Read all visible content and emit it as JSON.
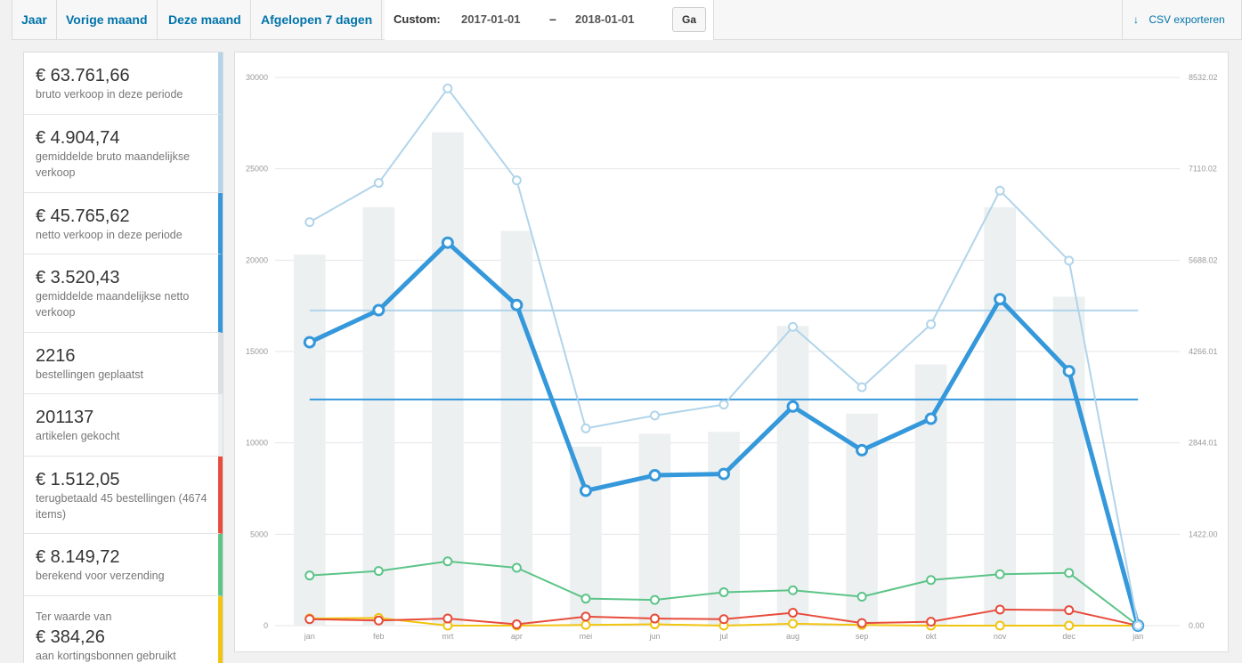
{
  "tabs": [
    "Jaar",
    "Vorige maand",
    "Deze maand",
    "Afgelopen 7 dagen"
  ],
  "custom": {
    "label": "Custom:",
    "start": "2017-01-01",
    "dash": "–",
    "end": "2018-01-01",
    "go_label": "Ga"
  },
  "export": {
    "icon": "↓",
    "label": "CSV exporteren"
  },
  "legend": [
    {
      "value": "€ 63.761,66",
      "label": "bruto verkoop in deze periode",
      "color": "#b1d4ea"
    },
    {
      "value": "€ 4.904,74",
      "label": "gemiddelde bruto maandelijkse verkoop",
      "color": "#b1d4ea"
    },
    {
      "value": "€ 45.765,62",
      "label": "netto verkoop in deze periode",
      "color": "#3498db"
    },
    {
      "value": "€ 3.520,43",
      "label": "gemiddelde maandelijkse netto verkoop",
      "color": "#3498db"
    },
    {
      "value": "2216",
      "label": "bestellingen geplaatst",
      "color": "#dbe1e3"
    },
    {
      "value": "201137",
      "label": "artikelen gekocht",
      "color": "#ecf0f1"
    },
    {
      "value": "€ 1.512,05",
      "label": "terugbetaald 45 bestellingen (4674 items)",
      "color": "#e74c3c"
    },
    {
      "value": "€ 8.149,72",
      "label": "berekend voor verzending",
      "color": "#5cc488"
    },
    {
      "pre": "Ter waarde van",
      "value": "€ 384,26",
      "label": "aan kortingsbonnen gebruikt",
      "color": "#f1c40f"
    }
  ],
  "chart_data": {
    "type": "bar+line",
    "categories": [
      "jan",
      "feb",
      "mrt",
      "apr",
      "mei",
      "jun",
      "jul",
      "aug",
      "sep",
      "okt",
      "nov",
      "dec",
      "jan"
    ],
    "y_left": {
      "ticks": [
        "0",
        "5000",
        "10000",
        "15000",
        "20000",
        "25000",
        "30000"
      ],
      "min": 0,
      "max": 30000
    },
    "y_right": {
      "ticks": [
        "0.00",
        "1422.00",
        "2844.01",
        "4266.01",
        "5688.02",
        "7110.02",
        "8532.02"
      ],
      "min": 0,
      "max": 8532.02
    },
    "bars": {
      "axis": "left",
      "color": "#ecf0f1",
      "values": [
        20300,
        22900,
        27000,
        21600,
        9800,
        10500,
        10600,
        16400,
        11600,
        14300,
        22900,
        18000,
        0
      ]
    },
    "series": [
      {
        "axis": "right",
        "color": "#b1d4ea",
        "width": 2,
        "values": [
          6280,
          6890,
          8360,
          6930,
          3070,
          3270,
          3440,
          4650,
          3710,
          4690,
          6770,
          5680,
          0
        ]
      },
      {
        "axis": "right",
        "color": "#3498db",
        "width": 5,
        "values": [
          4410,
          4910,
          5960,
          4990,
          2100,
          2340,
          2360,
          3410,
          2730,
          3220,
          5080,
          3960,
          0
        ]
      },
      {
        "axis": "right",
        "color": "#5cc488",
        "width": 2,
        "values": [
          780,
          850,
          1000,
          900,
          420,
          400,
          520,
          550,
          450,
          710,
          800,
          820,
          0
        ]
      },
      {
        "axis": "right",
        "color": "#e74c3c",
        "width": 2,
        "values": [
          100,
          80,
          110,
          20,
          140,
          110,
          100,
          200,
          40,
          60,
          250,
          240,
          0
        ]
      },
      {
        "axis": "right",
        "color": "#f1c40f",
        "width": 2,
        "values": [
          110,
          120,
          0,
          0,
          10,
          20,
          0,
          30,
          10,
          0,
          0,
          0,
          0
        ]
      }
    ],
    "hlines": [
      {
        "axis": "right",
        "value": 4904.74,
        "color": "#b1d4ea"
      },
      {
        "axis": "right",
        "value": 3520.43,
        "color": "#3498db"
      }
    ],
    "grid": true
  }
}
